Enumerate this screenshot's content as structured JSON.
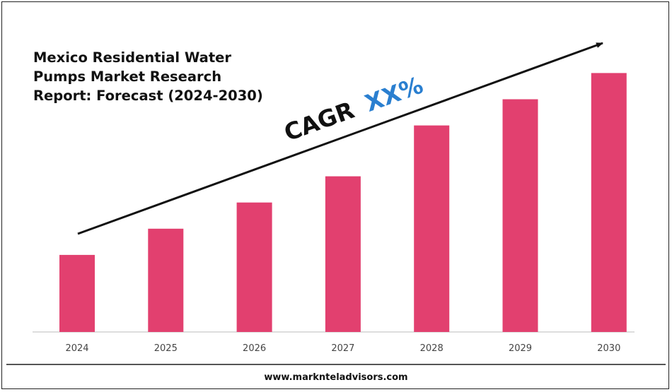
{
  "chart_data": {
    "type": "bar",
    "title_lines": [
      "Mexico Residential Water",
      "Pumps Market Research",
      "Report: Forecast (2024-2030)"
    ],
    "categories": [
      "2024",
      "2025",
      "2026",
      "2027",
      "2028",
      "2029",
      "2030"
    ],
    "values": [
      1.0,
      1.34,
      1.68,
      2.02,
      2.68,
      3.02,
      3.36
    ],
    "ylim": [
      0,
      3.4
    ],
    "bar_color": "#e2406f",
    "grid": false,
    "legend": "none",
    "annotation": {
      "prefix": "CAGR",
      "value": "XX%",
      "prefix_color": "#111111",
      "value_color": "#2a7fd0"
    }
  },
  "footer": {
    "website": "www.marknteladvisors.com"
  }
}
